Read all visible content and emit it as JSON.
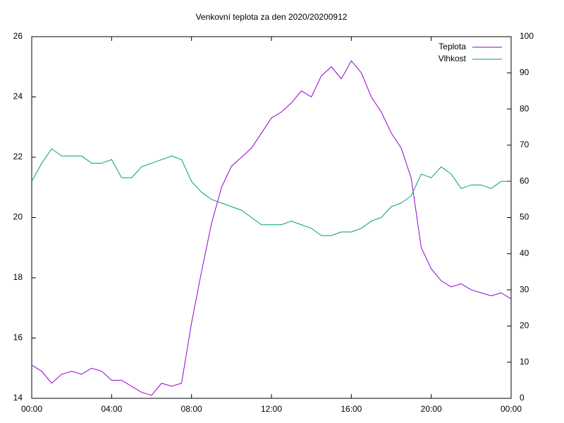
{
  "chart_data": {
    "type": "line",
    "title": "Venkovní teplota za den 2020/20200912",
    "x": [
      0,
      0.5,
      1,
      1.5,
      2,
      2.5,
      3,
      3.5,
      4,
      4.5,
      5,
      5.5,
      6,
      6.5,
      7,
      7.5,
      8,
      8.5,
      9,
      9.5,
      10,
      10.5,
      11,
      11.5,
      12,
      12.5,
      13,
      13.5,
      14,
      14.5,
      15,
      15.5,
      16,
      16.5,
      17,
      17.5,
      18,
      18.5,
      19,
      19.5,
      20,
      20.5,
      21,
      21.5,
      22,
      22.5,
      23,
      23.5,
      24
    ],
    "series": [
      {
        "name": "Teplota",
        "color": "#9400d3",
        "values": [
          15.1,
          14.9,
          14.5,
          14.8,
          14.9,
          14.8,
          15.0,
          14.9,
          14.6,
          14.6,
          14.4,
          14.2,
          14.1,
          14.5,
          14.4,
          14.5,
          16.5,
          18.2,
          19.8,
          21.0,
          21.7,
          22.0,
          22.3,
          22.8,
          23.3,
          23.5,
          23.8,
          24.2,
          24.0,
          24.7,
          25.0,
          24.6,
          25.2,
          24.8,
          24.0,
          23.5,
          22.8,
          22.3,
          21.3,
          19.0,
          18.3,
          17.9,
          17.7,
          17.8,
          17.6,
          17.5,
          17.4,
          17.5,
          17.3
        ]
      },
      {
        "name": "Vlhkost",
        "color": "#009e73",
        "axis": "y2",
        "values": [
          60,
          65,
          69,
          67,
          67,
          67,
          65,
          65,
          66,
          61,
          61,
          64,
          65,
          66,
          67,
          66,
          60,
          57,
          55,
          54,
          53,
          52,
          50,
          48,
          48,
          48,
          49,
          48,
          47,
          45,
          45,
          46,
          46,
          47,
          49,
          50,
          53,
          54,
          56,
          62,
          61,
          64,
          62,
          58,
          59,
          59,
          58,
          60,
          60
        ]
      }
    ],
    "xlim": [
      0,
      24
    ],
    "xticks": [
      {
        "value": 0,
        "label": "00:00"
      },
      {
        "value": 4,
        "label": "04:00"
      },
      {
        "value": 8,
        "label": "08:00"
      },
      {
        "value": 12,
        "label": "12:00"
      },
      {
        "value": 16,
        "label": "16:00"
      },
      {
        "value": 20,
        "label": "20:00"
      },
      {
        "value": 24,
        "label": "00:00"
      }
    ],
    "ylim": [
      14,
      26
    ],
    "yticks": [
      14,
      16,
      18,
      20,
      22,
      24,
      26
    ],
    "y2lim": [
      0,
      100
    ],
    "y2ticks": [
      0,
      10,
      20,
      30,
      40,
      50,
      60,
      70,
      80,
      90,
      100
    ],
    "legend": "top-right",
    "grid": false
  }
}
